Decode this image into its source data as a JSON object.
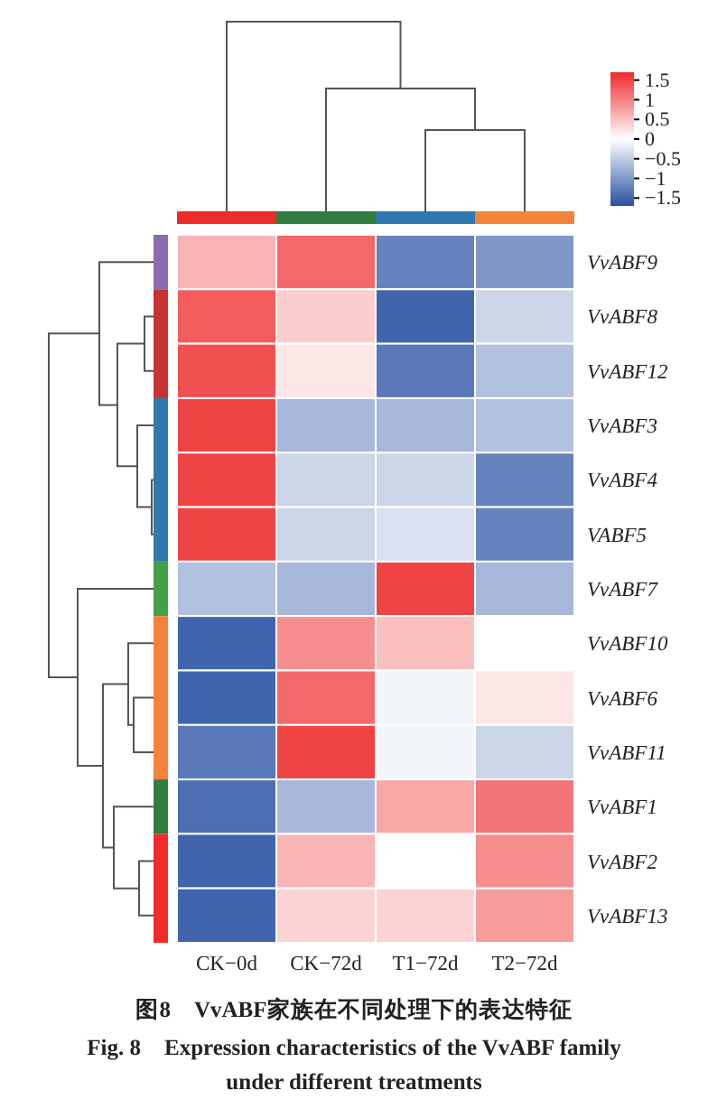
{
  "chart_data": {
    "type": "heatmap",
    "title": "图8　VvABF家族在不同处理下的表达特征",
    "subtitle": "Fig. 8　Expression characteristics of the VvABF family under different treatments",
    "categories": [
      "CK−0d",
      "CK−72d",
      "T1−72d",
      "T2−72d"
    ],
    "y_categories": [
      "VvABF9",
      "VvABF8",
      "VvABF12",
      "VvABF3",
      "VvABF4",
      "VABF5",
      "VvABF7",
      "VvABF10",
      "VvABF6",
      "VvABF11",
      "VvABF1",
      "VvABF2",
      "VvABF13"
    ],
    "cells": [
      [
        0.6,
        1.2,
        -1.2,
        -1.0
      ],
      [
        1.3,
        0.4,
        -1.5,
        -0.4
      ],
      [
        1.4,
        0.2,
        -1.3,
        -0.6
      ],
      [
        1.5,
        -0.7,
        -0.7,
        -0.6
      ],
      [
        1.5,
        -0.4,
        -0.4,
        -1.2
      ],
      [
        1.5,
        -0.4,
        -0.3,
        -1.2
      ],
      [
        -0.6,
        -0.7,
        1.5,
        -0.7
      ],
      [
        -1.5,
        0.9,
        0.5,
        0.0
      ],
      [
        -1.5,
        1.2,
        -0.1,
        0.2
      ],
      [
        -1.3,
        1.5,
        -0.1,
        -0.4
      ],
      [
        -1.4,
        -0.7,
        0.7,
        1.1
      ],
      [
        -1.5,
        0.6,
        0.0,
        0.9
      ],
      [
        -1.5,
        0.35,
        0.35,
        0.8
      ]
    ],
    "clim": [
      -1.7,
      1.7
    ],
    "cticks": [
      1.5,
      1,
      0.5,
      0,
      {
        "value": -0.5,
        "label": "−0.5"
      },
      {
        "value": -1,
        "label": "−1"
      },
      {
        "value": -1.5,
        "label": "−1.5"
      }
    ]
  }
}
